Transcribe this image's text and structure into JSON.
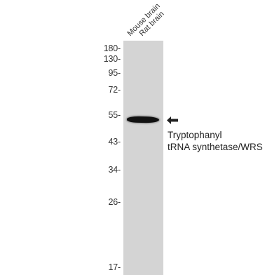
{
  "samples": [
    "Mouse brain",
    "Rat brain"
  ],
  "markers": [
    "180-",
    "130-",
    "95-",
    "72-",
    "55-",
    "43-",
    "34-",
    "26-",
    "17-"
  ],
  "target": {
    "line1": "Tryptophanyl",
    "line2": "tRNA synthetase/WRS"
  }
}
